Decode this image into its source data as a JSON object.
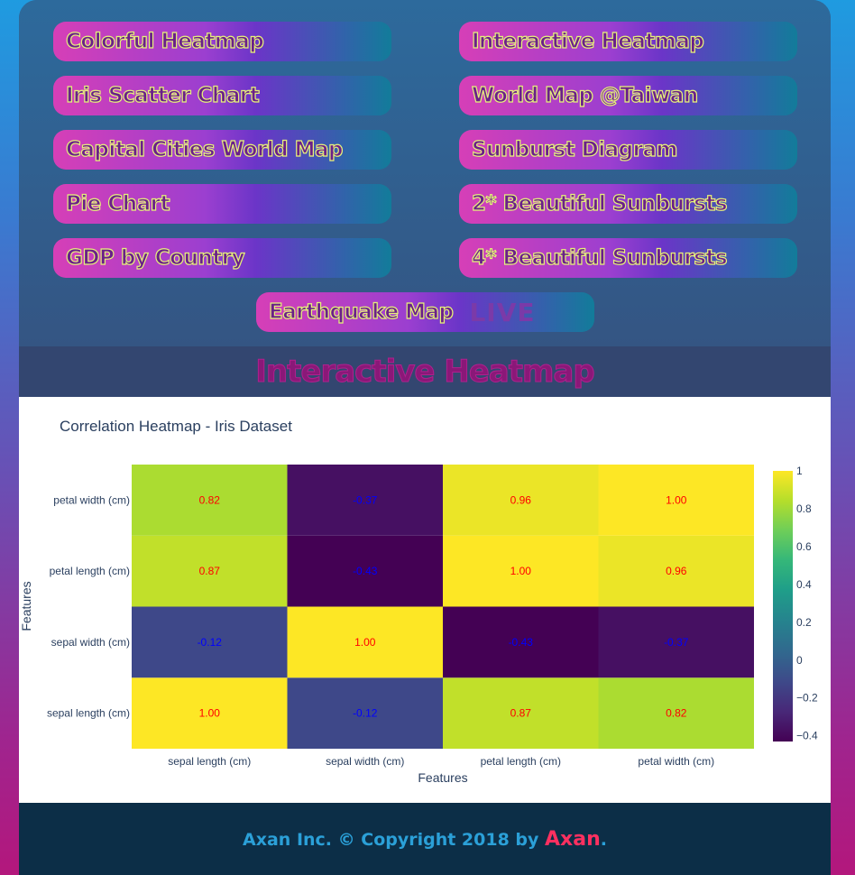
{
  "nav": {
    "items": [
      {
        "label": "Colorful Heatmap"
      },
      {
        "label": "Interactive Heatmap"
      },
      {
        "label": "Iris Scatter Chart"
      },
      {
        "label": "World Map @Taiwan"
      },
      {
        "label": "Capital Cities World Map"
      },
      {
        "label": "Sunburst Diagram"
      },
      {
        "label": "Pie Chart"
      },
      {
        "label": "2* Beautiful Sunbursts"
      },
      {
        "label": "GDP by Country"
      },
      {
        "label": "4* Beautiful Sunbursts"
      }
    ],
    "earthquake": {
      "label": "Earthquake Map",
      "live": "LIVE"
    }
  },
  "section": {
    "title": "Interactive Heatmap"
  },
  "footer": {
    "text": "Axan Inc. © Copyright 2018 by ",
    "brand": "Axan",
    "dot": "."
  },
  "colors": {
    "high_text": "#ff0000",
    "low_text": "#0000ff"
  },
  "chart_data": {
    "type": "heatmap",
    "title": "Correlation Heatmap - Iris Dataset",
    "xlabel": "Features",
    "ylabel": "Features",
    "x": [
      "sepal length (cm)",
      "sepal width (cm)",
      "petal length (cm)",
      "petal width (cm)"
    ],
    "y": [
      "sepal length (cm)",
      "sepal width (cm)",
      "petal length (cm)",
      "petal width (cm)"
    ],
    "z": [
      [
        1.0,
        -0.12,
        0.87,
        0.82
      ],
      [
        -0.12,
        1.0,
        -0.43,
        -0.37
      ],
      [
        0.87,
        -0.43,
        1.0,
        0.96
      ],
      [
        0.82,
        -0.37,
        0.96,
        1.0
      ]
    ],
    "colorscale": "Viridis",
    "zmin": -0.43,
    "zmax": 1.0,
    "colorbar_ticks": [
      "1",
      "0.8",
      "0.6",
      "0.4",
      "0.2",
      "0",
      "−0.2",
      "−0.4"
    ],
    "colorbar_tick_values": [
      1,
      0.8,
      0.6,
      0.4,
      0.2,
      0,
      -0.2,
      -0.4
    ]
  }
}
